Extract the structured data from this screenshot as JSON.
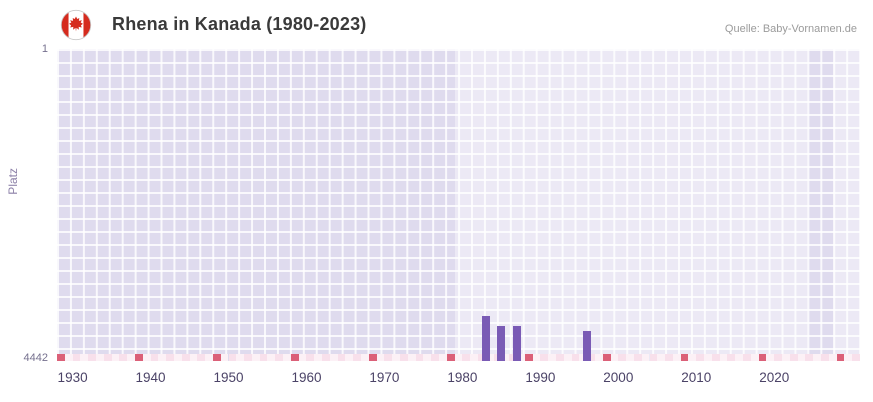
{
  "header": {
    "title": "Rhena in Kanada (1980-2023)",
    "source": "Quelle: Baby-Vornamen.de",
    "flag": "canada-flag-icon"
  },
  "chart_data": {
    "type": "bar",
    "title": "Rhena in Kanada (1980-2023)",
    "xlabel": "",
    "ylabel": "Platz",
    "y_axis": {
      "min": 1,
      "max": 4442,
      "top_label": "1",
      "bottom_label": "4442",
      "inverted": true
    },
    "x_axis": {
      "min": 1928,
      "max": 2031,
      "tick_labels": [
        "1930",
        "1940",
        "1950",
        "1960",
        "1970",
        "1980",
        "1990",
        "2000",
        "2010",
        "2020"
      ]
    },
    "points": [
      {
        "year": 1983,
        "rank": 3800
      },
      {
        "year": 1985,
        "rank": 3950
      },
      {
        "year": 1987,
        "rank": 3950
      },
      {
        "year": 1996,
        "rank": 4010
      }
    ],
    "grid": true,
    "legend": "none",
    "shaded_regions": [
      {
        "from_year": 1928,
        "to_year": 1979
      },
      {
        "from_year": 2024.3,
        "to_year": 2027.6
      }
    ],
    "colors": {
      "bar": "#7A5BB5",
      "plot_bg_light": "#ECE9F5",
      "plot_bg_dark": "#DFDBEE",
      "grid_line": "rgba(255,255,255,0.8)",
      "strip_marker": "#DB6078",
      "strip_even": "#F8E0EB",
      "strip_odd": "#FCF1F6",
      "flag_red": "#D52B1E"
    }
  }
}
